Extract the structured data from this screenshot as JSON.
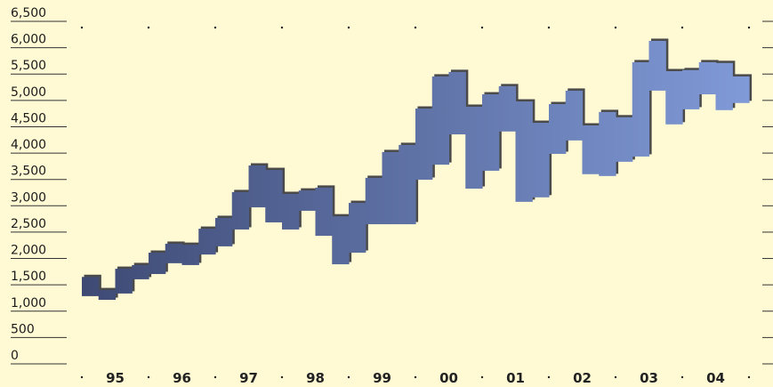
{
  "chart_data": {
    "type": "stepped-range",
    "categories": [
      "95",
      "96",
      "97",
      "98",
      "99",
      "00",
      "01",
      "02",
      "03",
      "04"
    ],
    "high": [
      [
        1650,
        1400,
        1805,
        1875
      ],
      [
        2110,
        2280,
        2260,
        2565
      ],
      [
        2770,
        3260,
        3765,
        3680
      ],
      [
        3225,
        3290,
        3345,
        2800
      ],
      [
        3055,
        3530,
        4020,
        4155
      ],
      [
        4845,
        5455,
        5540,
        4880
      ],
      [
        5115,
        5270,
        4980,
        4575
      ],
      [
        4930,
        5185,
        4525,
        4780
      ],
      [
        4680,
        5725,
        6130,
        5555
      ],
      [
        5575,
        5725,
        5710,
        5455
      ]
    ],
    "low": [
      [
        1285,
        1215,
        1335,
        1605
      ],
      [
        1705,
        1910,
        1875,
        2075
      ],
      [
        2230,
        2550,
        2970,
        2685
      ],
      [
        2550,
        2905,
        2430,
        1890
      ],
      [
        2110,
        2650,
        2650,
        2650
      ],
      [
        3495,
        3780,
        4355,
        3325
      ],
      [
        3665,
        4410,
        3075,
        3160
      ],
      [
        3985,
        4240,
        3600,
        3565
      ],
      [
        3835,
        3935,
        5185,
        4545
      ],
      [
        4830,
        5115,
        4815,
        4950
      ]
    ],
    "color_start": "#3e4a74",
    "color_end": "#809ad8",
    "shadow_color": "#4a4a4a",
    "ylim": [
      0,
      6500
    ],
    "yticks": [
      0,
      500,
      {
        "value": 1000,
        "label": "1,000"
      },
      {
        "value": 1500,
        "label": "1,500"
      },
      {
        "value": 2000,
        "label": "2,000"
      },
      {
        "value": 2500,
        "label": "2,500"
      },
      {
        "value": 3000,
        "label": "3,000"
      },
      {
        "value": 3500,
        "label": "3,500"
      },
      {
        "value": 4000,
        "label": "4,000"
      },
      {
        "value": 4500,
        "label": "4,500"
      },
      {
        "value": 5000,
        "label": "5,000"
      },
      {
        "value": 5500,
        "label": "5,500"
      },
      {
        "value": 6000,
        "label": "6,000"
      },
      {
        "value": 6500,
        "label": "6,500"
      }
    ]
  }
}
